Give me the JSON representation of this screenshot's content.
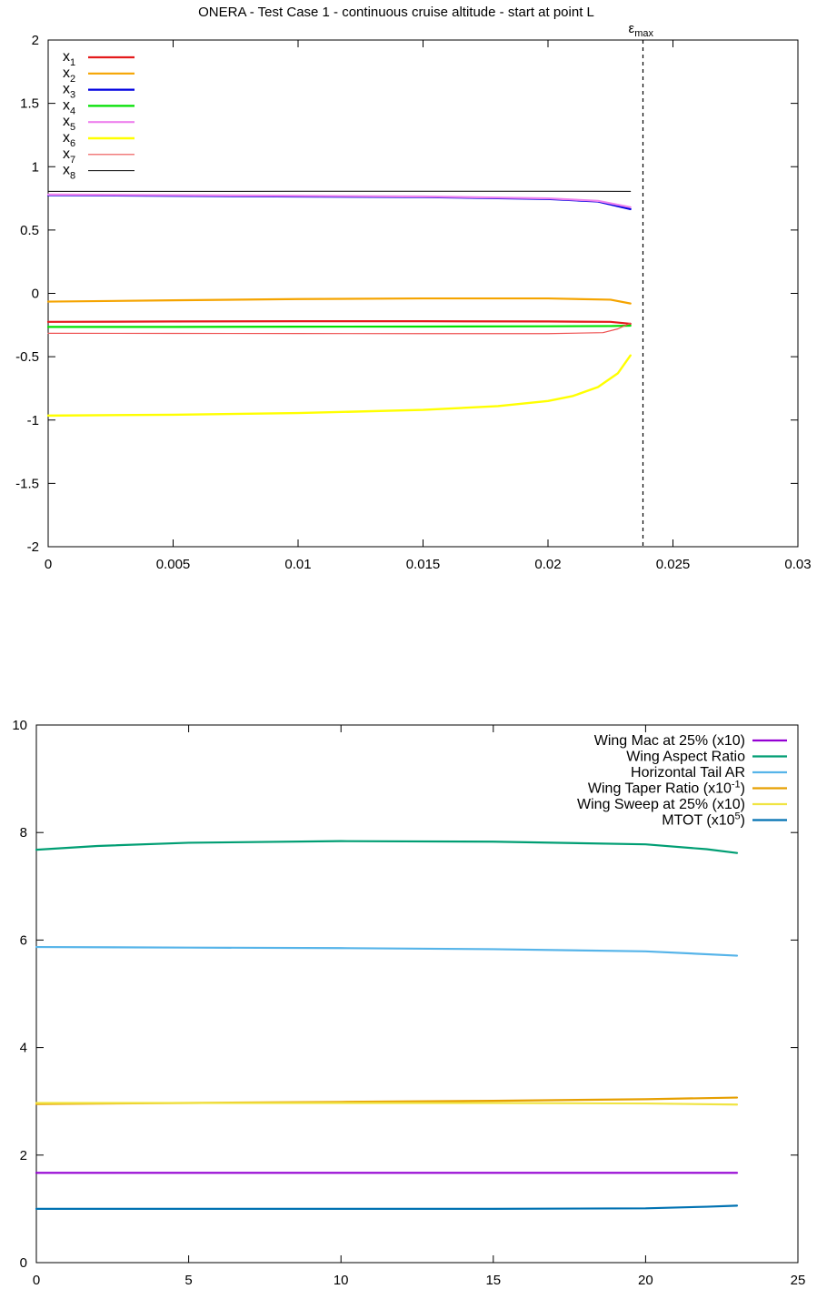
{
  "chart_data": [
    {
      "type": "line",
      "title": "ONERA - Test Case 1 - continuous cruise altitude - start at point L",
      "xlabel": "",
      "ylabel": "",
      "xlim": [
        0,
        0.03
      ],
      "ylim": [
        -2,
        2
      ],
      "x_ticks": [
        "0",
        "0.005",
        "0.01",
        "0.015",
        "0.02",
        "0.025",
        "0.03"
      ],
      "y_ticks": [
        "-2",
        "-1.5",
        "-1",
        "-0.5",
        "0",
        "0.5",
        "1",
        "1.5",
        "2"
      ],
      "grid": false,
      "legend_position": "top-left",
      "annotation": {
        "base": "ε",
        "sub": "max",
        "x": 0.0238,
        "style": "dashed-vertical-line"
      },
      "series": [
        {
          "name_base": "x",
          "name_sub": "1",
          "color": "#e41a1c",
          "width": 2.2,
          "x": [
            0,
            0.005,
            0.01,
            0.015,
            0.02,
            0.0225,
            0.0233
          ],
          "y": [
            -0.225,
            -0.222,
            -0.22,
            -0.22,
            -0.222,
            -0.225,
            -0.24
          ]
        },
        {
          "name_base": "x",
          "name_sub": "2",
          "color": "#f5a400",
          "width": 2.2,
          "x": [
            0,
            0.005,
            0.01,
            0.015,
            0.02,
            0.0225,
            0.0233
          ],
          "y": [
            -0.065,
            -0.055,
            -0.045,
            -0.04,
            -0.04,
            -0.05,
            -0.08
          ]
        },
        {
          "name_base": "x",
          "name_sub": "3",
          "color": "#0000e0",
          "width": 2.2,
          "x": [
            0,
            0.005,
            0.01,
            0.015,
            0.02,
            0.022,
            0.0233
          ],
          "y": [
            0.775,
            0.77,
            0.765,
            0.76,
            0.745,
            0.725,
            0.665
          ]
        },
        {
          "name_base": "x",
          "name_sub": "4",
          "color": "#00e000",
          "width": 2.2,
          "x": [
            0,
            0.005,
            0.01,
            0.015,
            0.02,
            0.0225,
            0.0233
          ],
          "y": [
            -0.265,
            -0.265,
            -0.263,
            -0.262,
            -0.26,
            -0.258,
            -0.255
          ]
        },
        {
          "name_base": "x",
          "name_sub": "5",
          "color": "#ee82ee",
          "width": 2.2,
          "x": [
            0,
            0.005,
            0.01,
            0.015,
            0.02,
            0.022,
            0.0233
          ],
          "y": [
            0.78,
            0.775,
            0.77,
            0.765,
            0.75,
            0.73,
            0.68
          ]
        },
        {
          "name_base": "x",
          "name_sub": "6",
          "color": "#ffff00",
          "width": 2.4,
          "x": [
            0,
            0.005,
            0.01,
            0.015,
            0.018,
            0.02,
            0.021,
            0.022,
            0.0228,
            0.0233
          ],
          "y": [
            -0.965,
            -0.958,
            -0.945,
            -0.92,
            -0.89,
            -0.85,
            -0.81,
            -0.74,
            -0.63,
            -0.49
          ]
        },
        {
          "name_base": "x",
          "name_sub": "7",
          "color": "#ee5050",
          "width": 1.2,
          "x": [
            0,
            0.005,
            0.01,
            0.015,
            0.02,
            0.0222,
            0.0228,
            0.0233
          ],
          "y": [
            -0.315,
            -0.316,
            -0.317,
            -0.318,
            -0.318,
            -0.31,
            -0.28,
            -0.235
          ]
        },
        {
          "name_base": "x",
          "name_sub": "8",
          "color": "#000000",
          "width": 1.0,
          "x": [
            0,
            0.005,
            0.01,
            0.015,
            0.02,
            0.0233
          ],
          "y": [
            0.805,
            0.805,
            0.806,
            0.806,
            0.806,
            0.805
          ]
        }
      ]
    },
    {
      "type": "line",
      "title": "",
      "xlabel": "",
      "ylabel": "",
      "xlim": [
        0,
        25
      ],
      "ylim": [
        0,
        10
      ],
      "x_ticks": [
        "0",
        "5",
        "10",
        "15",
        "20",
        "25"
      ],
      "y_ticks": [
        "0",
        "2",
        "4",
        "6",
        "8",
        "10"
      ],
      "grid": false,
      "legend_position": "top-right",
      "series": [
        {
          "name_base": "Wing Mac at 25% (x10)",
          "name_sup": "",
          "name_tail": "",
          "color": "#9400d3",
          "width": 2.2,
          "x": [
            0,
            5,
            10,
            15,
            20,
            23
          ],
          "y": [
            1.67,
            1.67,
            1.67,
            1.67,
            1.67,
            1.67
          ]
        },
        {
          "name_base": "Wing Aspect Ratio",
          "name_sup": "",
          "name_tail": "",
          "color": "#009e73",
          "width": 2.2,
          "x": [
            0,
            2,
            5,
            10,
            15,
            20,
            22,
            23
          ],
          "y": [
            7.68,
            7.75,
            7.81,
            7.84,
            7.83,
            7.78,
            7.69,
            7.62
          ]
        },
        {
          "name_base": "Horizontal Tail AR",
          "name_sup": "",
          "name_tail": "",
          "color": "#56b4e9",
          "width": 2.2,
          "x": [
            0,
            5,
            10,
            15,
            20,
            23
          ],
          "y": [
            5.87,
            5.86,
            5.85,
            5.83,
            5.79,
            5.71
          ]
        },
        {
          "name_base": "Wing Taper Ratio (x10",
          "name_sup": "-1",
          "name_tail": ")",
          "color": "#e69f00",
          "width": 2.2,
          "x": [
            0,
            5,
            10,
            15,
            20,
            23
          ],
          "y": [
            2.95,
            2.97,
            2.99,
            3.01,
            3.04,
            3.07
          ]
        },
        {
          "name_base": "Wing Sweep at 25% (x10)",
          "name_sup": "",
          "name_tail": "",
          "color": "#f0e442",
          "width": 2.2,
          "x": [
            0,
            5,
            10,
            15,
            20,
            23
          ],
          "y": [
            2.97,
            2.97,
            2.97,
            2.97,
            2.96,
            2.94
          ]
        },
        {
          "name_base": "MTOT (x10",
          "name_sup": "5",
          "name_tail": ")",
          "color": "#0072b2",
          "width": 2.2,
          "x": [
            0,
            5,
            10,
            15,
            20,
            22,
            23
          ],
          "y": [
            1.0,
            1.0,
            1.0,
            1.0,
            1.01,
            1.04,
            1.06
          ]
        }
      ]
    }
  ]
}
